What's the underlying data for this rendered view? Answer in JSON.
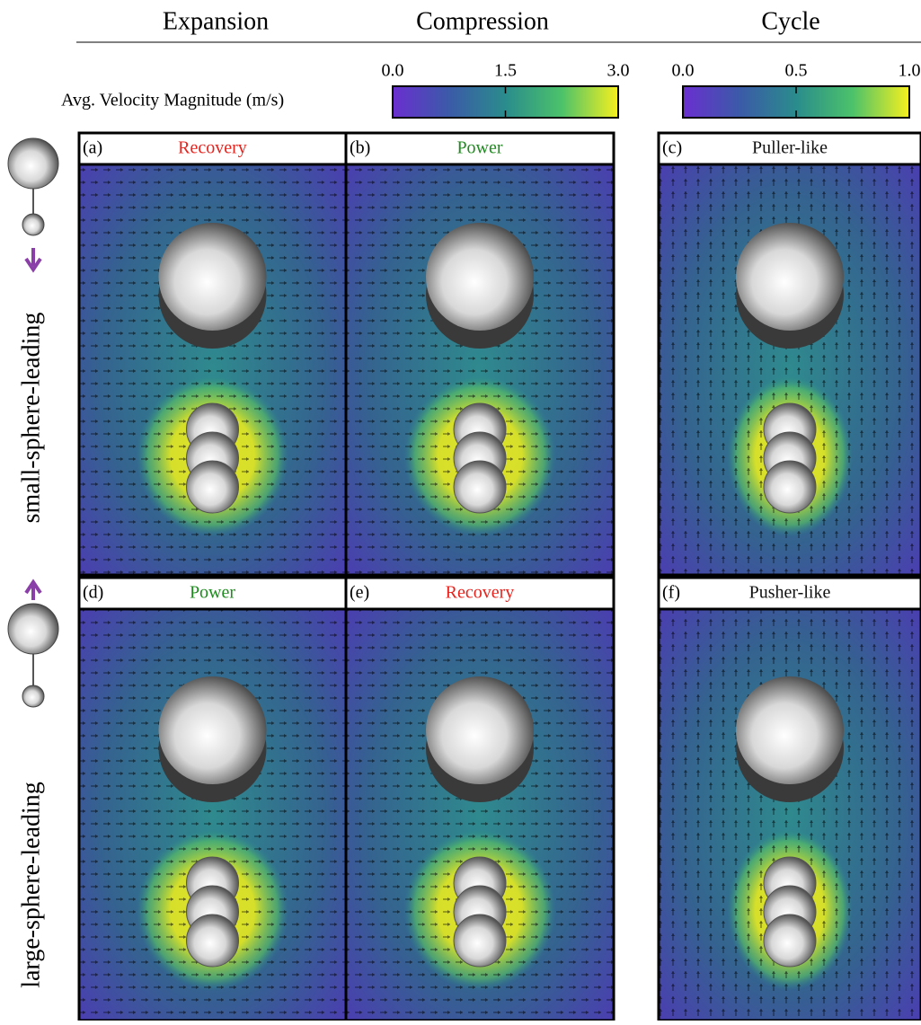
{
  "columns": [
    "Expansion",
    "Compression",
    "Cycle"
  ],
  "colorbar_label": "Avg. Velocity Magnitude (m/s)",
  "colorbars": [
    {
      "ticks": [
        {
          "value": 0,
          "label": "0.0"
        },
        {
          "value": 1.5,
          "label": "1.5"
        },
        {
          "value": 3,
          "label": "3.0"
        }
      ],
      "lim": [
        0,
        3
      ]
    },
    {
      "ticks": [
        {
          "value": 0,
          "label": "0.0"
        },
        {
          "value": 0.5,
          "label": "0.5"
        },
        {
          "value": 1,
          "label": "1.0"
        }
      ],
      "lim": [
        0,
        1
      ]
    }
  ],
  "row_labels": [
    "small-sphere-leading",
    "large-sphere-leading"
  ],
  "panels": [
    {
      "tag": "(a)",
      "title": "Recovery",
      "color": "#e8221c"
    },
    {
      "tag": "(b)",
      "title": "Power",
      "color": "#1f8a1f"
    },
    {
      "tag": "(c)",
      "title": "Puller-like",
      "color": "#111111"
    },
    {
      "tag": "(d)",
      "title": "Power",
      "color": "#1f8a1f"
    },
    {
      "tag": "(e)",
      "title": "Recovery",
      "color": "#e8221c"
    },
    {
      "tag": "(f)",
      "title": "Pusher-like",
      "color": "#111111"
    }
  ]
}
